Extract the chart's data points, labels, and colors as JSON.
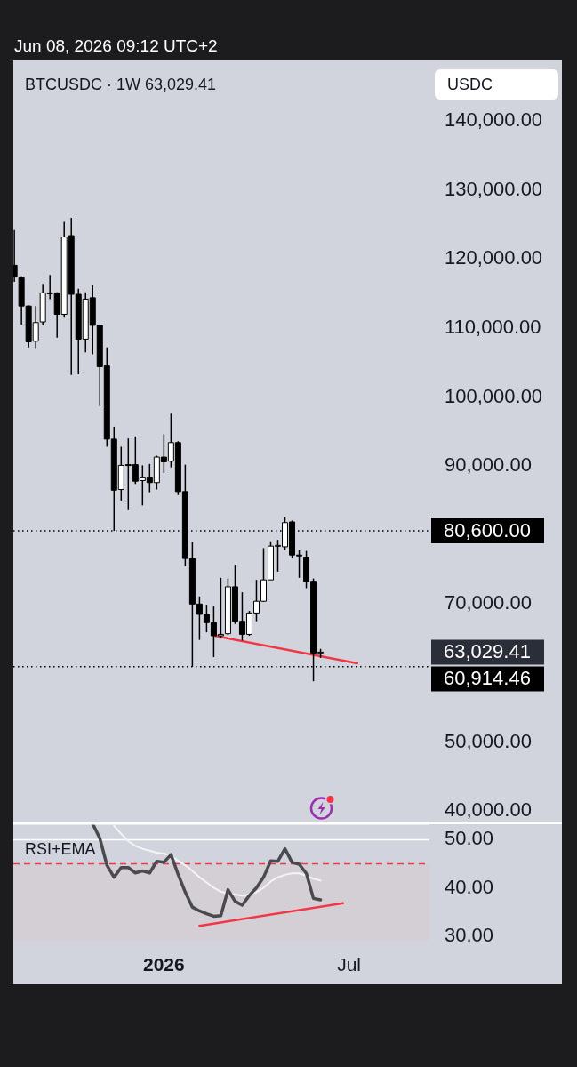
{
  "chart_data": [
    {
      "type": "candlestick",
      "title": "BTCUSDC · 1W 63,029.41",
      "ylabel": "USDC",
      "annotations": [
        "Jun 08, 2026 09:12 UTC+2",
        "63,029.41"
      ],
      "x": [
        "2025-08-11",
        "2025-08-18",
        "2025-08-25",
        "2025-09-01",
        "2025-09-08",
        "2025-09-15",
        "2025-09-22",
        "2025-09-29",
        "2025-10-06",
        "2025-10-13",
        "2025-10-20",
        "2025-10-27",
        "2025-11-03",
        "2025-11-10",
        "2025-11-17",
        "2025-11-24",
        "2025-12-01",
        "2025-12-08",
        "2025-12-15",
        "2025-12-22",
        "2025-12-29",
        "2026-01-05",
        "2026-01-12",
        "2026-01-19",
        "2026-01-26",
        "2026-02-02",
        "2026-02-09",
        "2026-02-16",
        "2026-02-23",
        "2026-03-02",
        "2026-03-09",
        "2026-03-16",
        "2026-03-23",
        "2026-03-30",
        "2026-04-06",
        "2026-04-13",
        "2026-04-20",
        "2026-04-27",
        "2026-05-04",
        "2026-05-11",
        "2026-05-18",
        "2026-05-25",
        "2026-06-01",
        "2026-06-08"
      ],
      "ohlc": [
        [
          119100,
          124200,
          116700,
          117400
        ],
        [
          117300,
          117500,
          110500,
          113200
        ],
        [
          113200,
          113300,
          107200,
          108000
        ],
        [
          108100,
          113200,
          107100,
          110800
        ],
        [
          110900,
          116400,
          110400,
          115100
        ],
        [
          115100,
          117700,
          114200,
          115000
        ],
        [
          115100,
          115200,
          108600,
          112000
        ],
        [
          112000,
          125400,
          111500,
          123200
        ],
        [
          123400,
          126000,
          103200,
          114900
        ],
        [
          114900,
          115700,
          103300,
          108400
        ],
        [
          108400,
          115200,
          106500,
          114200
        ],
        [
          114400,
          116200,
          106200,
          110400
        ],
        [
          110400,
          110500,
          98700,
          104400
        ],
        [
          104500,
          107200,
          92800,
          93900
        ],
        [
          93900,
          95700,
          80600,
          86500
        ],
        [
          86600,
          92800,
          85000,
          90100
        ],
        [
          90200,
          94000,
          83600,
          90100
        ],
        [
          90200,
          94300,
          87400,
          87800
        ],
        [
          87900,
          90100,
          84300,
          88300
        ],
        [
          88300,
          90300,
          86200,
          87600
        ],
        [
          87600,
          91500,
          86600,
          91300
        ],
        [
          91300,
          94600,
          89000,
          90600
        ],
        [
          90700,
          97600,
          89800,
          93400
        ],
        [
          93400,
          93600,
          85800,
          86300
        ],
        [
          86300,
          90200,
          75500,
          76600
        ],
        [
          76600,
          79000,
          60914.46,
          70000
        ],
        [
          70000,
          71100,
          64800,
          68500
        ],
        [
          68500,
          69900,
          65900,
          67300
        ],
        [
          67300,
          69700,
          62300,
          65400
        ],
        [
          65400,
          73800,
          65000,
          65600
        ],
        [
          65700,
          73700,
          65500,
          72500
        ],
        [
          72500,
          75700,
          67100,
          67500
        ],
        [
          67500,
          71700,
          64700,
          65600
        ],
        [
          65600,
          69000,
          65400,
          68700
        ],
        [
          68700,
          73500,
          67500,
          70400
        ],
        [
          70400,
          78100,
          70300,
          73500
        ],
        [
          73500,
          79100,
          73500,
          78400
        ],
        [
          78400,
          79300,
          74700,
          78500
        ],
        [
          78300,
          82600,
          77800,
          81800
        ],
        [
          81900,
          82100,
          76600,
          77100
        ],
        [
          77100,
          77800,
          73800,
          77000
        ],
        [
          76800,
          77700,
          72300,
          73300
        ],
        [
          73300,
          73700,
          58800,
          62900
        ],
        [
          62900,
          63500,
          62200,
          63029.41
        ]
      ],
      "colors": [
        "#000000",
        "#000000",
        "#000000",
        "#ffffff",
        "#ffffff",
        "#000000",
        "#000000",
        "#ffffff",
        "#000000",
        "#000000",
        "#ffffff",
        "#000000",
        "#000000",
        "#000000",
        "#000000",
        "#ffffff",
        "#000000",
        "#000000",
        "#ffffff",
        "#000000",
        "#ffffff",
        "#000000",
        "#ffffff",
        "#000000",
        "#000000",
        "#000000",
        "#000000",
        "#000000",
        "#000000",
        "#ffffff",
        "#ffffff",
        "#000000",
        "#000000",
        "#ffffff",
        "#ffffff",
        "#ffffff",
        "#ffffff",
        "#ffffff",
        "#ffffff",
        "#000000",
        "#000000",
        "#000000",
        "#000000",
        "#ffffff"
      ],
      "series": [
        {
          "type": "line",
          "x": [
            "2026-02-24",
            "2026-07-14"
          ],
          "values": [
            65400,
            61400
          ],
          "color": "#f23645"
        }
      ],
      "xlim": [
        "2025-08-10",
        "2026-09-23"
      ],
      "ylim": [
        38200,
        148800
      ],
      "yticks": [
        {
          "value": 40000,
          "label": "40,000.00"
        },
        {
          "value": 50000,
          "label": "50,000.00"
        },
        {
          "value": 70000,
          "label": "70,000.00"
        },
        {
          "value": 90000,
          "label": "90,000.00"
        },
        {
          "value": 100000,
          "label": "100,000.00"
        },
        {
          "value": 110000,
          "label": "110,000.00"
        },
        {
          "value": 120000,
          "label": "120,000.00"
        },
        {
          "value": 130000,
          "label": "130,000.00"
        },
        {
          "value": 140000,
          "label": "140,000.00"
        }
      ],
      "ref_lines": [
        {
          "axis": "y",
          "value": 80600,
          "label": "80,600.00",
          "color": "#000000",
          "line_style": "dotted"
        },
        {
          "axis": "y",
          "value": 60914.46,
          "label": "60,914.46",
          "color": "#000000",
          "line_style": "dotted"
        }
      ],
      "tick_labels": "y",
      "grid": false,
      "marker": "none"
    },
    {
      "type": "line",
      "title": "RSI+EMA",
      "series": [
        {
          "x": [
            "2025-10-27",
            "2025-11-03",
            "2025-11-10",
            "2025-11-17",
            "2025-11-24",
            "2025-12-01",
            "2025-12-08",
            "2025-12-15",
            "2025-12-22",
            "2025-12-29",
            "2026-01-05",
            "2026-01-12",
            "2026-01-19",
            "2026-01-26",
            "2026-02-02",
            "2026-02-09",
            "2026-02-16",
            "2026-02-23",
            "2026-03-02",
            "2026-03-09",
            "2026-03-16",
            "2026-03-23",
            "2026-03-30",
            "2026-04-06",
            "2026-04-13",
            "2026-04-20",
            "2026-04-27",
            "2026-05-04",
            "2026-05-11",
            "2026-05-18",
            "2026-05-25",
            "2026-06-01",
            "2026-06-08"
          ],
          "values": [
            53.3,
            50.3,
            44.7,
            42.2,
            44.2,
            44.2,
            43.1,
            43.5,
            43.1,
            45.5,
            45.3,
            46.9,
            42.8,
            39.1,
            36.0,
            35.2,
            34.6,
            34.1,
            34.2,
            39.6,
            37.2,
            36.4,
            38.4,
            40.0,
            42.2,
            45.6,
            45.5,
            48.1,
            45.3,
            44.9,
            43.0,
            37.8,
            37.5
          ],
          "color": "#4a4a4e"
        },
        {
          "x": [
            "2025-11-17",
            "2025-11-24",
            "2025-12-01",
            "2025-12-08",
            "2025-12-15",
            "2025-12-22",
            "2025-12-29",
            "2026-01-05",
            "2026-01-12",
            "2026-01-19",
            "2026-01-26",
            "2026-02-02",
            "2026-02-09",
            "2026-02-16",
            "2026-02-23",
            "2026-03-02",
            "2026-03-09",
            "2026-03-16",
            "2026-03-23",
            "2026-03-30",
            "2026-04-06",
            "2026-04-13",
            "2026-04-20",
            "2026-04-27",
            "2026-05-04",
            "2026-05-11",
            "2026-05-18",
            "2026-05-25",
            "2026-06-01",
            "2026-06-08"
          ],
          "values": [
            52.9,
            51.2,
            49.7,
            48.7,
            48.1,
            47.7,
            47.3,
            47.1,
            46.7,
            45.6,
            44.7,
            43.5,
            42.2,
            41.1,
            40.0,
            39.2,
            38.8,
            38.6,
            38.4,
            38.6,
            39.1,
            40.0,
            41.3,
            42.2,
            42.7,
            43.0,
            43.0,
            42.5,
            41.9,
            41.5
          ],
          "color": "#f4f4f6"
        },
        {
          "type": "line",
          "x": [
            "2026-02-09",
            "2026-06-30"
          ],
          "values": [
            32.1,
            36.8
          ],
          "color": "#f23645"
        }
      ],
      "xlim": [
        "2025-08-10",
        "2026-09-23"
      ],
      "xticks": [
        {
          "value": "2026-01-05",
          "label": "2026"
        },
        {
          "value": "2026-07-06",
          "label": "Jul"
        }
      ],
      "ylim": [
        29,
        53.4
      ],
      "yticks": [
        {
          "value": 30,
          "label": "30.00"
        },
        {
          "value": 40,
          "label": "40.00"
        },
        {
          "value": 50,
          "label": "50.00"
        }
      ],
      "ref_lines": [
        {
          "axis": "y",
          "value": 50,
          "color": "#ffffff"
        },
        {
          "axis": "y",
          "value": 45,
          "color": "#f23645",
          "line_style": "dashed"
        }
      ],
      "bands": [
        {
          "axis": "y",
          "from": 29,
          "to": 45,
          "color": "#d4ced5"
        }
      ],
      "grid": false,
      "marker": "none"
    }
  ]
}
